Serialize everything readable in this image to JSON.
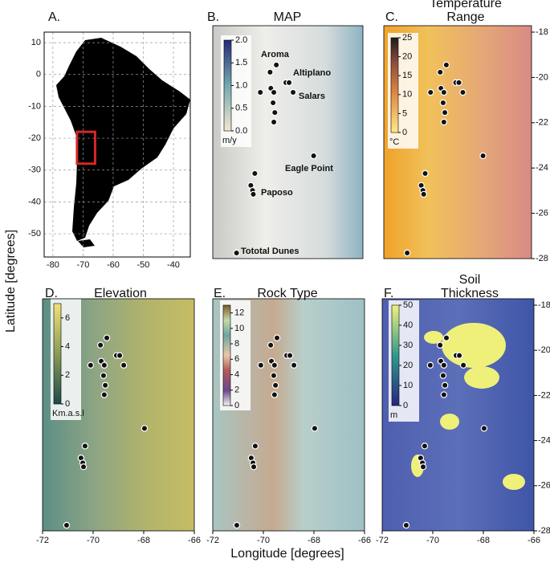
{
  "figure": {
    "y_axis_label": "Latitude [degrees]",
    "x_axis_label": "Longitude [degrees]"
  },
  "panel_a": {
    "label": "A.",
    "xlim": [
      -82.9,
      -34.4
    ],
    "ylim": [
      -57.3,
      13.3
    ],
    "xticks": [
      -80,
      -70,
      -60,
      -50,
      -40
    ],
    "yticks": [
      10,
      0,
      -10,
      -20,
      -30,
      -40,
      -50
    ],
    "grid": true,
    "highlight": {
      "lon": [
        -72,
        -66
      ],
      "lat": [
        -28,
        -18
      ],
      "color": "#d62728"
    }
  },
  "regional": {
    "xlim": [
      -72,
      -66
    ],
    "ylim": [
      -28,
      -18
    ],
    "xticks": [
      -72,
      -70,
      -68,
      -66
    ],
    "yticks": [
      -18,
      -20,
      -22,
      -24,
      -26,
      -28
    ],
    "sites": {
      "lon": [
        -69.46,
        -69.71,
        -69.08,
        -68.95,
        -69.68,
        -70.1,
        -68.79,
        -69.56,
        -69.59,
        -69.52,
        -69.56,
        -67.97,
        -70.32,
        -70.48,
        -70.41,
        -70.38,
        -71.05
      ],
      "lat": [
        -19.45,
        -19.77,
        -20.23,
        -20.23,
        -20.48,
        -20.66,
        -20.66,
        -20.66,
        -21.12,
        -21.55,
        -21.97,
        -23.46,
        -24.24,
        -24.77,
        -24.99,
        -25.16,
        -27.75
      ]
    },
    "site_labels": [
      "Aroma",
      "Altiplano",
      "Salars",
      "Eagle Point",
      "Paposo",
      "Tototal Dunes"
    ]
  },
  "panels": [
    {
      "label": "B.",
      "title": [
        "MAP"
      ],
      "colorbar": {
        "lim": [
          0,
          2
        ],
        "ticks": [
          {
            "value": 0,
            "label": "0.0"
          },
          {
            "value": 0.5,
            "label": "0.5"
          },
          {
            "value": 1,
            "label": "1.0"
          },
          {
            "value": 1.5,
            "label": "1.5"
          },
          {
            "value": 2,
            "label": "2.0"
          }
        ],
        "unit": "m/y"
      }
    },
    {
      "label": "C.",
      "title": [
        "Temperature",
        "Range"
      ],
      "colorbar": {
        "lim": [
          0,
          25
        ],
        "ticks": [
          0,
          5,
          10,
          15,
          20,
          25
        ],
        "unit": "°C"
      }
    },
    {
      "label": "D.",
      "title": [
        "Elevation"
      ],
      "colorbar": {
        "lim": [
          0,
          7
        ],
        "ticks": [
          0,
          2,
          4,
          6
        ],
        "unit": "Km.a.s.l"
      }
    },
    {
      "label": "E.",
      "title": [
        "Rock Type"
      ],
      "colorbar": {
        "lim": [
          0,
          13
        ],
        "ticks": [
          0,
          2,
          4,
          6,
          8,
          10,
          12
        ]
      }
    },
    {
      "label": "F.",
      "title": [
        "Soil",
        "Thickness"
      ],
      "colorbar": {
        "lim": [
          0,
          50
        ],
        "ticks": [
          0,
          10,
          20,
          30,
          40,
          50
        ],
        "unit": "m"
      }
    }
  ]
}
